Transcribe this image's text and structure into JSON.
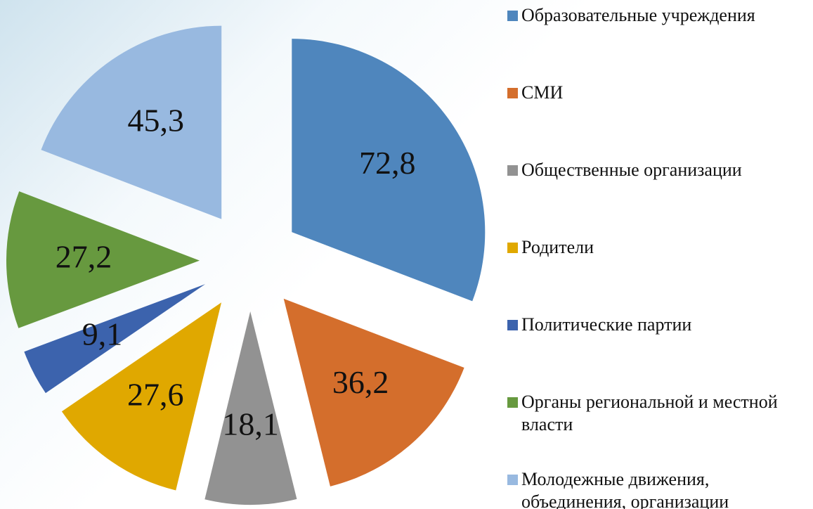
{
  "chart_data": {
    "type": "pie",
    "categories": [
      "Образовательные учреждения",
      "СМИ",
      "Общественные организации",
      "Родители",
      "Политические партии",
      "Органы региональной и местной власти",
      "Молодежные движения, объединения, организации"
    ],
    "values": [
      72.8,
      36.2,
      18.1,
      27.6,
      9.1,
      27.2,
      45.3
    ],
    "value_labels": [
      "72,8",
      "36,2",
      "18,1",
      "27,6",
      "9,1",
      "27,2",
      "45,3"
    ],
    "colors": [
      "#4f86bd",
      "#d46e2c",
      "#929292",
      "#e0a800",
      "#3c63ad",
      "#67993f",
      "#98b9e0"
    ],
    "legend": "right"
  }
}
